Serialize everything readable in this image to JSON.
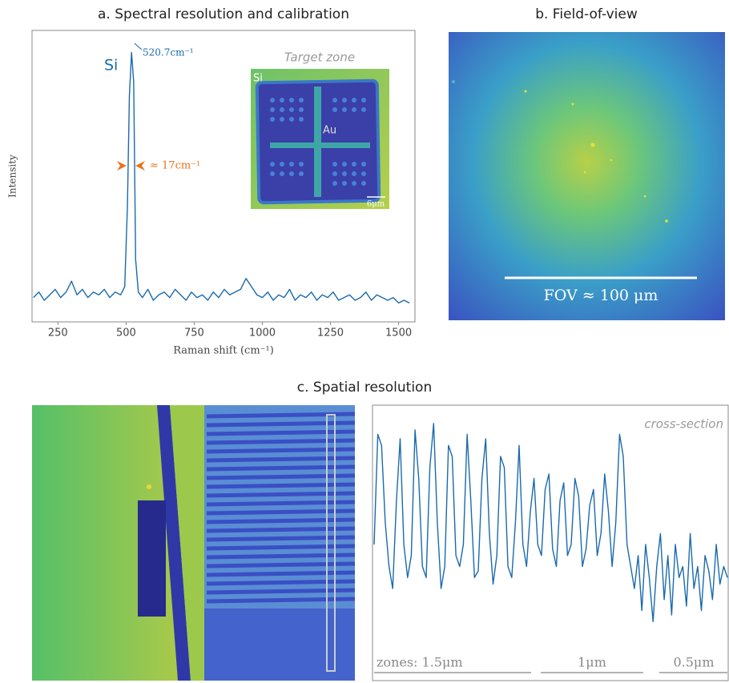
{
  "chart_data": [
    {
      "type": "line",
      "title": "a. Spectral resolution and calibration",
      "x_label": "Raman shift (cm⁻¹)",
      "y_label": "Intensity",
      "xlim": [
        155,
        1560
      ],
      "xticks": [
        250,
        500,
        750,
        1000,
        1250,
        1500
      ],
      "ylim": [
        0,
        100
      ],
      "annotations": {
        "peak_label": "Si",
        "peak_position": "520.7cm⁻¹",
        "fwhm": "≈ 17cm⁻¹"
      },
      "inset": {
        "title": "Target zone",
        "labels": [
          "Si",
          "Au"
        ],
        "scale": "6μm"
      },
      "series": [
        {
          "color": "#1a6aad",
          "x": [
            160,
            180,
            200,
            220,
            240,
            260,
            280,
            300,
            320,
            340,
            360,
            380,
            400,
            420,
            440,
            460,
            480,
            495,
            505,
            512,
            520,
            528,
            535,
            545,
            560,
            580,
            600,
            620,
            640,
            660,
            680,
            700,
            720,
            740,
            760,
            780,
            800,
            820,
            840,
            860,
            880,
            900,
            920,
            940,
            960,
            980,
            1000,
            1020,
            1040,
            1060,
            1080,
            1100,
            1120,
            1140,
            1160,
            1180,
            1200,
            1220,
            1240,
            1260,
            1280,
            1300,
            1320,
            1340,
            1360,
            1380,
            1400,
            1420,
            1440,
            1460,
            1480,
            1500,
            1520,
            1540
          ],
          "values": [
            6,
            8,
            5,
            7,
            9,
            6,
            8,
            12,
            7,
            9,
            6,
            8,
            7,
            9,
            6,
            8,
            7,
            10,
            40,
            80,
            96,
            85,
            20,
            8,
            6,
            9,
            5,
            7,
            8,
            6,
            9,
            7,
            5,
            8,
            6,
            7,
            5,
            8,
            6,
            9,
            7,
            8,
            9,
            13,
            10,
            7,
            6,
            8,
            5,
            7,
            6,
            9,
            5,
            7,
            6,
            8,
            5,
            7,
            6,
            8,
            5,
            6,
            7,
            5,
            6,
            8,
            5,
            7,
            6,
            5,
            6,
            4,
            5,
            4
          ]
        }
      ]
    },
    {
      "type": "line",
      "annotation": "cross-section",
      "zones": [
        "zones: 1.5μm",
        "1μm",
        "0.5μm"
      ],
      "ylim": [
        0,
        100
      ],
      "series": [
        {
          "color": "#1a6aad",
          "values": [
            40,
            90,
            85,
            50,
            30,
            20,
            60,
            88,
            40,
            25,
            35,
            92,
            70,
            30,
            25,
            75,
            95,
            50,
            20,
            30,
            85,
            80,
            35,
            30,
            40,
            90,
            60,
            25,
            28,
            70,
            88,
            45,
            22,
            35,
            80,
            75,
            30,
            25,
            50,
            85,
            40,
            30,
            55,
            70,
            40,
            35,
            65,
            72,
            38,
            30,
            60,
            68,
            35,
            40,
            70,
            62,
            30,
            38,
            58,
            65,
            35,
            45,
            72,
            55,
            30,
            50,
            90,
            80,
            40,
            30,
            20,
            35,
            10,
            40,
            25,
            5,
            30,
            45,
            15,
            35,
            8,
            40,
            25,
            30,
            12,
            45,
            20,
            30,
            10,
            35,
            28,
            15,
            40,
            22,
            30,
            25
          ]
        }
      ]
    }
  ],
  "field_of_view": {
    "title": "b. Field-of-view",
    "scale_label": "FOV ≈ 100 μm"
  },
  "spatial_resolution": {
    "title": "c. Spatial resolution"
  }
}
